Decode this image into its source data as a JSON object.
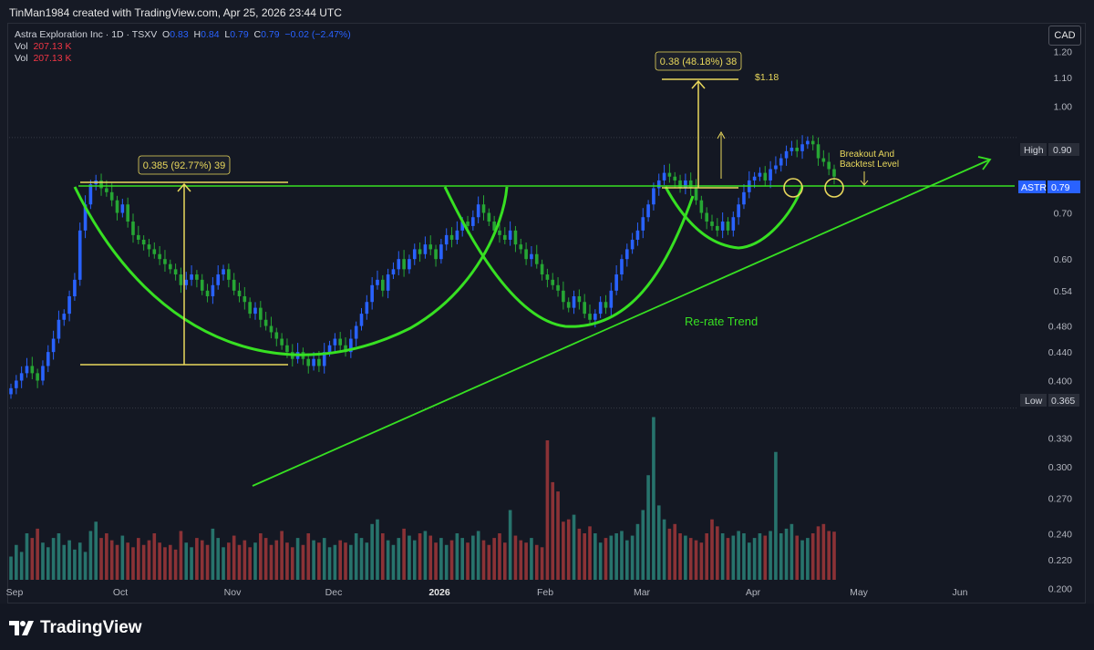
{
  "header": {
    "credit": "TinMan1984 created with TradingView.com, Apr 25, 2026 23:44 UTC",
    "currency": "CAD"
  },
  "legend": {
    "title": "Astra Exploration Inc · 1D · TSXV",
    "o_label": "O",
    "o": "0.83",
    "h_label": "H",
    "h": "0.84",
    "l_label": "L",
    "l": "0.79",
    "c_label": "C",
    "c": "0.79",
    "change": "−0.02 (−2.47%)",
    "vol_label": "Vol",
    "vol": "207.13 K",
    "vol2_label": "Vol",
    "vol2": "207.13 K"
  },
  "footer": {
    "brand": "TradingView"
  },
  "colors": {
    "up": "#2962ff",
    "down": "#26a634",
    "vol_up": "#27736c",
    "vol_down": "#8b3236",
    "annot": "#e9d85c",
    "pattern": "#37e022"
  },
  "chart_data": {
    "type": "candlestick",
    "symbol": "ASTR",
    "ylim": [
      0.18,
      1.3
    ],
    "yscale": "log",
    "y_ticks": [
      "1.20",
      "1.10",
      "1.00",
      "0.70",
      "0.60",
      "0.54",
      "0.480",
      "0.440",
      "0.400",
      "0.330",
      "0.300",
      "0.270",
      "0.240",
      "0.220",
      "0.200"
    ],
    "x_ticks": [
      "Sep",
      "Oct",
      "Nov",
      "Dec",
      "2026",
      "Feb",
      "Mar",
      "Apr",
      "May",
      "Jun"
    ],
    "high_label": "High",
    "high": "0.90",
    "low_label": "Low",
    "low": "0.365",
    "last_label": "ASTR",
    "last": "0.79",
    "annotations": {
      "measure1": "0.385 (92.77%) 39",
      "measure2": "0.38 (48.18%) 38",
      "target": "$1.18",
      "trend": "Re-rate Trend",
      "breakout_line1": "Breakout And",
      "breakout_line2": "Backtest Level"
    },
    "close_approx": [
      [
        0.39,
        0.4,
        0.41,
        0.42,
        0.41,
        0.4,
        0.42,
        0.44,
        0.46,
        0.49,
        0.5,
        0.53,
        0.56,
        0.66,
        0.72,
        0.77,
        0.78,
        0.76,
        0.75,
        0.73,
        0.7,
        0.72,
        0.68,
        0.65,
        0.64,
        0.63,
        0.62,
        0.61,
        0.6,
        0.59,
        0.58,
        0.57
      ],
      [
        0.55,
        0.56,
        0.57,
        0.56,
        0.54,
        0.53,
        0.55,
        0.57,
        0.58,
        0.56,
        0.54,
        0.53,
        0.52,
        0.5,
        0.51,
        0.49,
        0.48,
        0.47,
        0.46,
        0.45,
        0.44,
        0.43,
        0.44,
        0.43,
        0.42,
        0.43,
        0.42,
        0.44,
        0.45,
        0.46,
        0.45,
        0.44
      ],
      [
        0.46,
        0.48,
        0.5,
        0.52,
        0.55,
        0.56,
        0.54,
        0.57,
        0.58,
        0.6,
        0.58,
        0.6,
        0.62,
        0.61,
        0.63,
        0.62,
        0.6,
        0.63,
        0.65,
        0.64,
        0.66,
        0.68,
        0.67,
        0.69,
        0.72,
        0.7,
        0.68,
        0.66,
        0.65,
        0.64,
        0.66,
        0.63
      ],
      [
        0.62,
        0.6,
        0.61,
        0.59,
        0.57,
        0.56,
        0.55,
        0.54,
        0.52,
        0.51,
        0.53,
        0.52,
        0.5,
        0.49,
        0.5,
        0.52,
        0.51,
        0.54,
        0.57,
        0.6,
        0.62,
        0.64,
        0.66,
        0.69,
        0.72,
        0.76,
        0.78,
        0.8,
        0.79,
        0.78,
        0.76,
        0.78
      ],
      [
        0.76,
        0.73,
        0.7,
        0.68,
        0.67,
        0.66,
        0.68,
        0.66,
        0.69,
        0.72,
        0.75,
        0.78,
        0.79,
        0.8,
        0.78,
        0.81,
        0.82,
        0.84,
        0.86,
        0.87,
        0.86,
        0.88,
        0.89,
        0.88,
        0.84,
        0.83,
        0.81,
        0.79
      ]
    ],
    "volume_approx_k": [
      [
        100,
        150,
        120,
        200,
        180,
        220,
        160,
        140,
        180,
        200,
        150,
        170,
        130,
        160,
        120,
        210,
        250,
        180,
        200,
        170,
        150,
        190,
        160,
        140,
        180,
        150,
        170,
        200,
        160,
        140,
        150,
        130
      ],
      [
        210,
        160,
        140,
        180,
        170,
        150,
        220,
        180,
        140,
        160,
        190,
        150,
        170,
        140,
        160,
        200,
        180,
        150,
        170,
        210,
        160,
        140,
        180,
        150,
        200,
        170,
        160,
        180,
        140,
        150,
        170,
        160
      ],
      [
        150,
        200,
        180,
        160,
        240,
        260,
        200,
        170,
        150,
        180,
        220,
        190,
        170,
        200,
        210,
        190,
        160,
        180,
        150,
        170,
        200,
        180,
        160,
        190,
        210,
        170,
        150,
        180,
        200,
        160,
        300,
        190
      ],
      [
        170,
        160,
        180,
        150,
        140,
        600,
        420,
        380,
        250,
        260,
        280,
        220,
        200,
        230,
        200,
        160,
        180,
        190,
        200,
        210,
        170,
        190,
        240,
        300,
        450,
        700,
        320,
        260,
        220,
        240,
        200,
        190
      ],
      [
        180,
        170,
        160,
        200,
        260,
        230,
        200,
        180,
        190,
        210,
        200,
        160,
        180,
        200,
        190,
        210,
        550,
        200,
        220,
        240,
        190,
        170,
        180,
        200,
        230,
        240,
        210,
        207
      ]
    ]
  }
}
